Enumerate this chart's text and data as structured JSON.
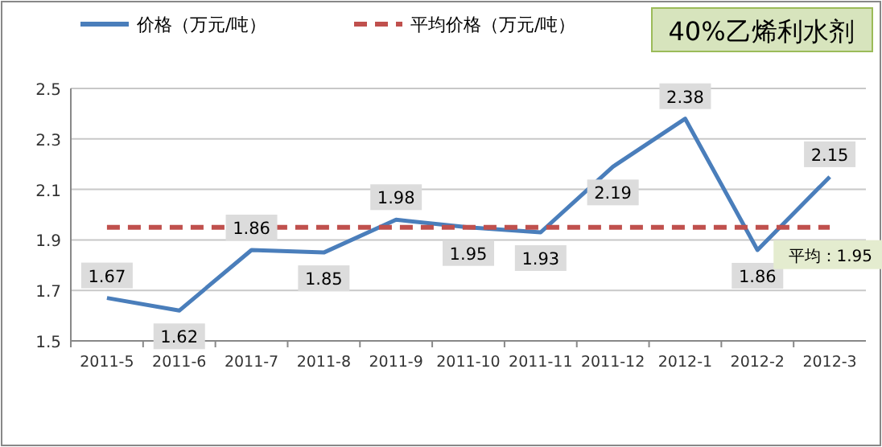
{
  "chart_data": {
    "type": "line",
    "title": "40%乙烯利水剂",
    "categories": [
      "2011-5",
      "2011-6",
      "2011-7",
      "2011-8",
      "2011-9",
      "2011-10",
      "2011-11",
      "2011-12",
      "2012-1",
      "2012-2",
      "2012-3"
    ],
    "series": [
      {
        "name": "价格（万元/吨）",
        "color": "#4a7ebb",
        "line_style": "solid",
        "values": [
          1.67,
          1.62,
          1.86,
          1.85,
          1.98,
          1.95,
          1.93,
          2.19,
          2.38,
          1.86,
          2.15
        ],
        "value_labels": [
          "1.67",
          "1.62",
          "1.86",
          "1.85",
          "1.98",
          "1.95",
          "1.93",
          "2.19",
          "2.38",
          "1.86",
          "2.15"
        ]
      },
      {
        "name": "平均价格（万元/吨）",
        "color": "#c0504d",
        "line_style": "dashed",
        "values": [
          1.95,
          1.95,
          1.95,
          1.95,
          1.95,
          1.95,
          1.95,
          1.95,
          1.95,
          1.95,
          1.95
        ]
      }
    ],
    "annotations": [
      {
        "text": "平均：1.95",
        "x": "2012-2",
        "y": 1.95
      }
    ],
    "ylim": [
      1.5,
      2.5
    ],
    "yticks": [
      1.5,
      1.7,
      1.9,
      2.1,
      2.3,
      2.5
    ],
    "grid": "y",
    "legend": "top left",
    "marker": "none"
  }
}
